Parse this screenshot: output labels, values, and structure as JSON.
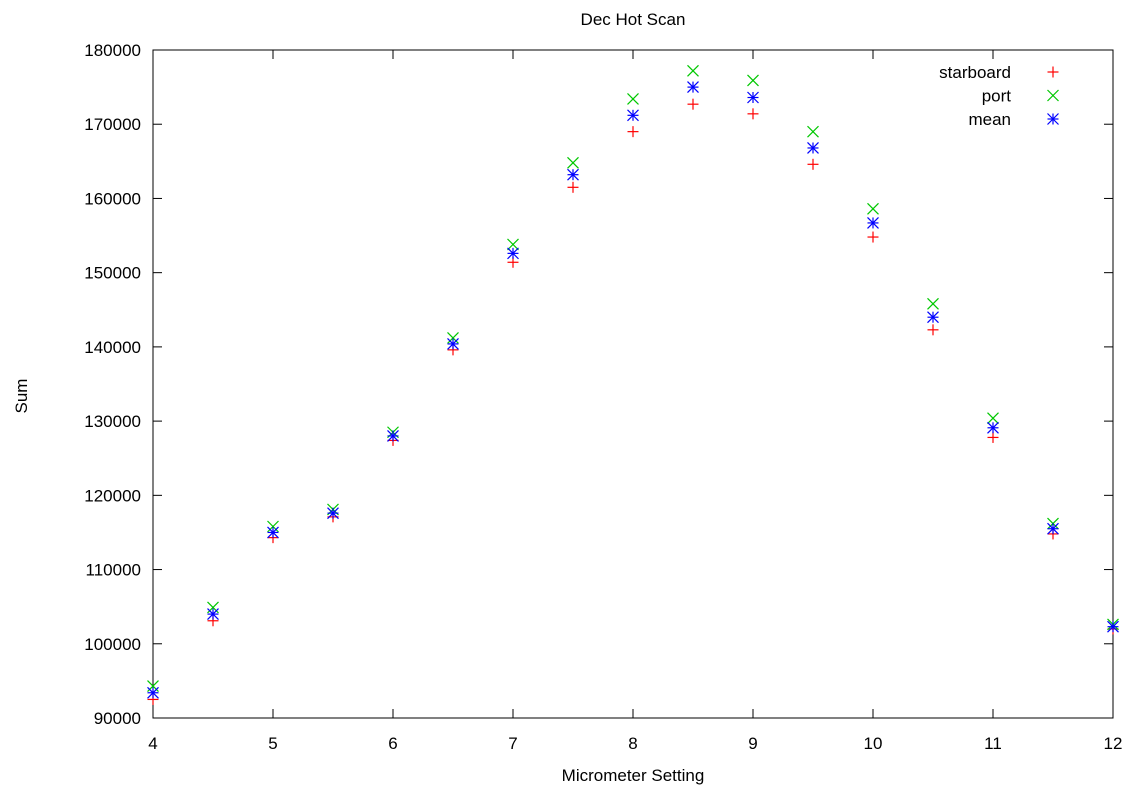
{
  "chart_data": {
    "type": "scatter",
    "title": "Dec Hot Scan",
    "xlabel": "Micrometer Setting",
    "ylabel": "Sum",
    "xlim": [
      4,
      12
    ],
    "ylim": [
      90000,
      180000
    ],
    "x_ticks": [
      "4",
      "5",
      "6",
      "7",
      "8",
      "9",
      "10",
      "11",
      "12"
    ],
    "y_ticks": [
      "90000",
      "100000",
      "110000",
      "120000",
      "130000",
      "140000",
      "150000",
      "160000",
      "170000",
      "180000"
    ],
    "grid": false,
    "legend_position": "top-right",
    "x": [
      4,
      4.5,
      5,
      5.5,
      6,
      6.5,
      7,
      7.5,
      8,
      8.5,
      9,
      9.5,
      10,
      10.5,
      11,
      11.5,
      12
    ],
    "series": [
      {
        "name": "starboard",
        "marker": "plus",
        "color": "#ff0000",
        "values": [
          92500,
          103100,
          114300,
          117100,
          127400,
          139600,
          151400,
          161500,
          169000,
          172700,
          171400,
          164600,
          154800,
          142300,
          127800,
          114800,
          102000
        ]
      },
      {
        "name": "port",
        "marker": "cross",
        "color": "#00c800",
        "values": [
          94300,
          104900,
          115800,
          118100,
          128500,
          141200,
          153800,
          164800,
          173400,
          177200,
          175900,
          169000,
          158600,
          145800,
          130400,
          116200,
          102600
        ]
      },
      {
        "name": "mean",
        "marker": "star",
        "color": "#0000ff",
        "values": [
          93400,
          104000,
          115000,
          117600,
          128000,
          140400,
          152600,
          163200,
          171200,
          175000,
          173600,
          166800,
          156700,
          144000,
          129100,
          115500,
          102300
        ]
      }
    ]
  }
}
